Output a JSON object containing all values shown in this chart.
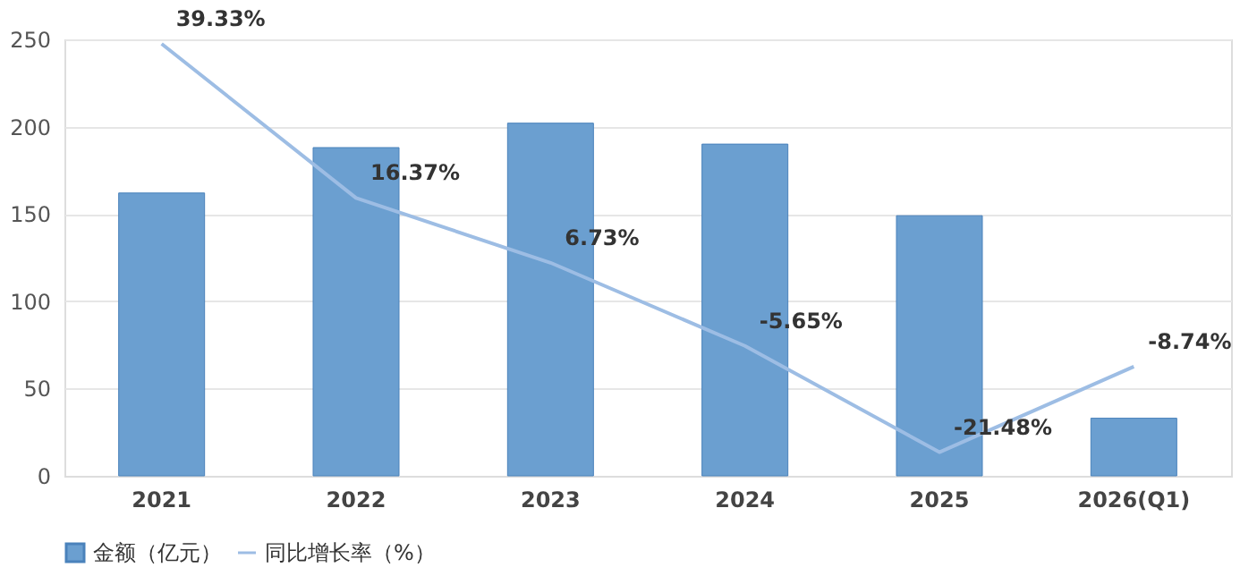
{
  "chart_data": {
    "type": "bar",
    "categories": [
      "2021",
      "2022",
      "2023",
      "2024",
      "2025",
      "2026(Q1)"
    ],
    "series": [
      {
        "name": "金额（亿元）",
        "color": "#6b9fd0",
        "values": [
          162,
          188,
          202,
          190,
          149,
          33
        ]
      },
      {
        "name": "同比增长率（%）",
        "type": "line",
        "axis": "y2",
        "color": "#9dbde4",
        "values": [
          39.33,
          16.37,
          6.73,
          -5.65,
          -21.48,
          -8.74
        ],
        "value_labels": [
          "39.33%",
          "16.37%",
          "6.73%",
          "-5.65%",
          "-21.48%",
          "-8.74%"
        ]
      }
    ],
    "ylim": [
      0,
      250
    ],
    "yticks": [
      0,
      50,
      100,
      150,
      200,
      250
    ],
    "grid": "y",
    "legend": "bottom",
    "tick_labels": [
      "x",
      "y"
    ]
  }
}
